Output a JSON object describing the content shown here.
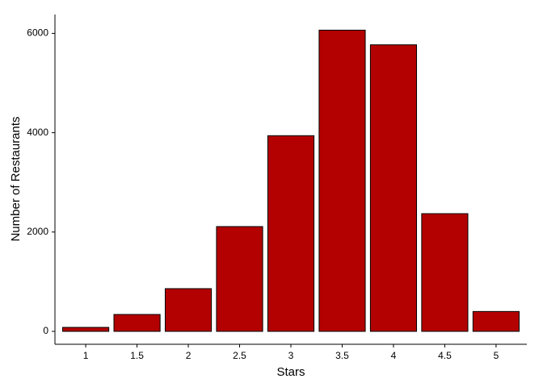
{
  "chart_data": {
    "type": "bar",
    "x_label": "Stars",
    "y_label": "Number of Restaurants",
    "categories": [
      "1",
      "1.5",
      "2",
      "2.5",
      "3",
      "3.5",
      "4",
      "4.5",
      "5"
    ],
    "values": [
      80,
      340,
      860,
      2110,
      3940,
      6065,
      5770,
      2370,
      400
    ],
    "color": "#b30000",
    "ylim": [
      -260,
      6380
    ],
    "yticks": [
      0,
      2000,
      4000,
      6000
    ],
    "grid": false
  }
}
